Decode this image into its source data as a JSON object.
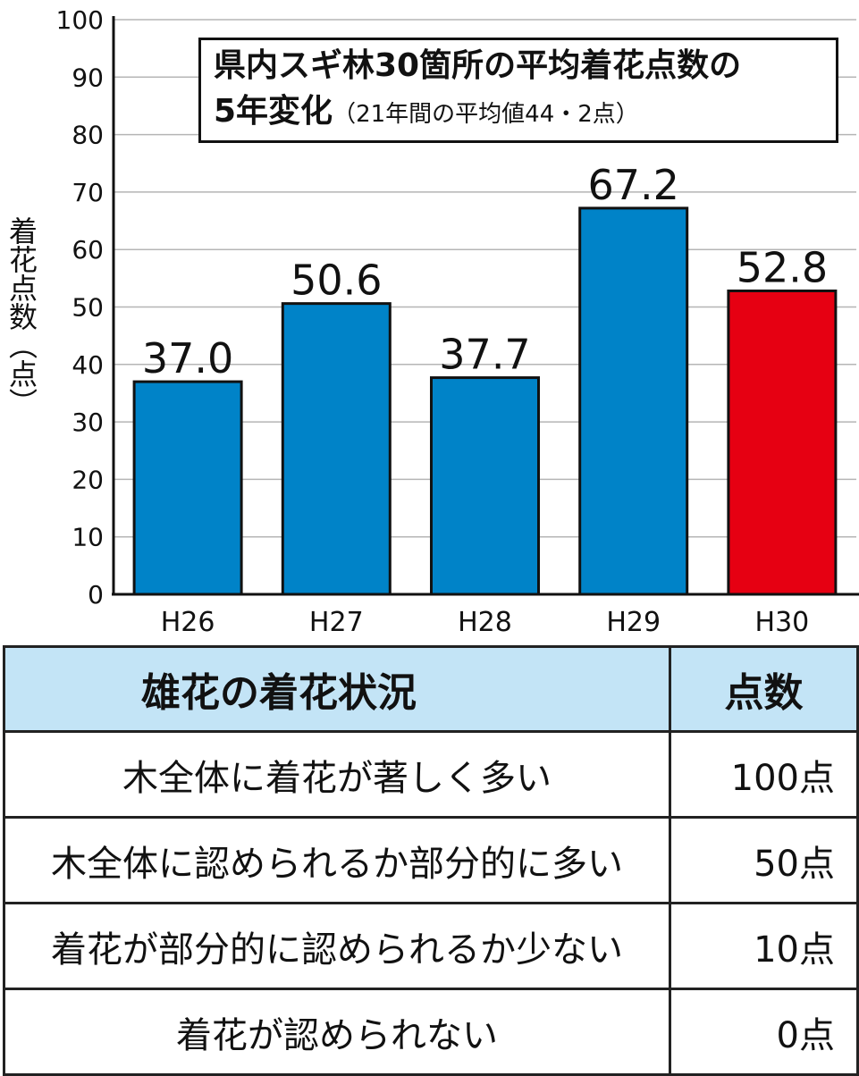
{
  "chart_data": {
    "type": "bar",
    "title": "県内スギ林30箇所の平均着花点数の",
    "title_line2": "5年変化",
    "subtitle": "（21年間の平均値44・2点）",
    "ylabel": "着花点数（点）",
    "xlabel": "",
    "ylim": [
      0,
      100
    ],
    "yticks": [
      "0",
      "10",
      "20",
      "30",
      "40",
      "50",
      "60",
      "70",
      "80",
      "90",
      "100"
    ],
    "categories": [
      "H26",
      "H27",
      "H28",
      "H29",
      "H30"
    ],
    "values": [
      37.0,
      50.6,
      37.7,
      67.2,
      52.8
    ],
    "value_labels": [
      "37.0",
      "50.6",
      "37.7",
      "67.2",
      "52.8"
    ],
    "bar_colors": [
      "#0083c8",
      "#0083c8",
      "#0083c8",
      "#0083c8",
      "#e60012"
    ],
    "grid": true
  },
  "table": {
    "headers": [
      "雄花の着花状況",
      "点数"
    ],
    "rows": [
      {
        "status": "木全体に着花が著しく多い",
        "points": "100点"
      },
      {
        "status": "木全体に認められるか部分的に多い",
        "points": "50点"
      },
      {
        "status": "着花が部分的に認められるか少ない",
        "points": "10点"
      },
      {
        "status": "着花が認められない",
        "points": "0点"
      }
    ],
    "header_color": "#c3e4f6"
  }
}
